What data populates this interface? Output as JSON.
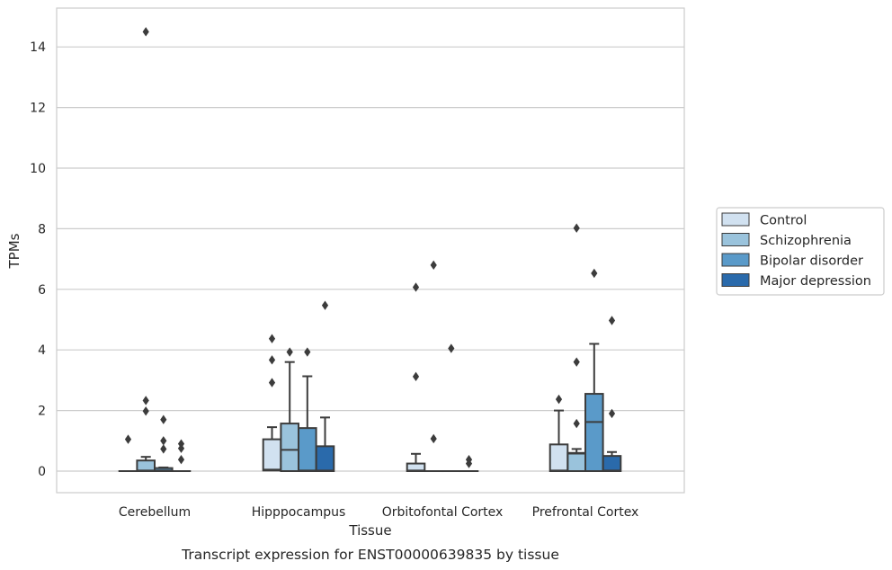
{
  "chart_data": {
    "type": "box",
    "caption": "Transcript expression for ENST00000639835 by tissue",
    "xlabel": "Tissue",
    "ylabel": "TPMs",
    "ylim": [
      -0.7,
      15.2
    ],
    "yticks": [
      0,
      2,
      4,
      6,
      8,
      10,
      12,
      14
    ],
    "grid": "horizontal",
    "legend_position": "right",
    "categories": [
      "Cerebellum",
      "Hipppocampus",
      "Orbitofontal Cortex",
      "Prefrontal Cortex"
    ],
    "series": [
      {
        "name": "Control",
        "color": "#d1e1f0",
        "boxes": [
          {
            "q1": 0,
            "median": 0,
            "q3": 0,
            "whislo": 0,
            "whishi": 0,
            "fliers": [
              1.05
            ]
          },
          {
            "q1": 0.02,
            "median": 0.05,
            "q3": 1.05,
            "whislo": 0,
            "whishi": 1.45,
            "fliers": [
              2.92,
              3.67,
              4.37
            ]
          },
          {
            "q1": 0,
            "median": 0.02,
            "q3": 0.25,
            "whislo": 0,
            "whishi": 0.57,
            "fliers": [
              3.12,
              6.07
            ]
          },
          {
            "q1": 0,
            "median": 0.02,
            "q3": 0.88,
            "whislo": 0,
            "whishi": 2.0,
            "fliers": [
              2.37
            ]
          }
        ]
      },
      {
        "name": "Schizophrenia",
        "color": "#9ac3dc",
        "boxes": [
          {
            "q1": 0,
            "median": 0.02,
            "q3": 0.35,
            "whislo": 0,
            "whishi": 0.47,
            "fliers": [
              1.98,
              2.33,
              14.5
            ]
          },
          {
            "q1": 0,
            "median": 0.7,
            "q3": 1.57,
            "whislo": 0,
            "whishi": 3.6,
            "fliers": [
              3.93
            ]
          },
          {
            "q1": 0,
            "median": 0,
            "q3": 0,
            "whislo": 0,
            "whishi": 0,
            "fliers": [
              1.07,
              6.8
            ]
          },
          {
            "q1": 0,
            "median": 0.58,
            "q3": 0.6,
            "whislo": 0,
            "whishi": 0.73,
            "fliers": [
              1.57,
              3.6,
              8.02
            ]
          }
        ]
      },
      {
        "name": "Bipolar disorder",
        "color": "#5a9ac9",
        "boxes": [
          {
            "q1": 0,
            "median": 0.02,
            "q3": 0.1,
            "whislo": 0,
            "whishi": 0.12,
            "fliers": [
              0.73,
              1.0,
              1.7
            ]
          },
          {
            "q1": 0,
            "median": 0.02,
            "q3": 1.42,
            "whislo": 0,
            "whishi": 3.13,
            "fliers": [
              3.93
            ]
          },
          {
            "q1": 0,
            "median": 0,
            "q3": 0,
            "whislo": 0,
            "whishi": 0,
            "fliers": [
              4.05
            ]
          },
          {
            "q1": 0,
            "median": 1.62,
            "q3": 2.55,
            "whislo": 0,
            "whishi": 4.2,
            "fliers": [
              6.53
            ]
          }
        ]
      },
      {
        "name": "Major depression",
        "color": "#2a6aab",
        "boxes": [
          {
            "q1": 0,
            "median": 0,
            "q3": 0,
            "whislo": 0,
            "whishi": 0,
            "fliers": [
              0.38,
              0.75,
              0.9
            ]
          },
          {
            "q1": 0,
            "median": 0.02,
            "q3": 0.82,
            "whislo": 0,
            "whishi": 1.77,
            "fliers": [
              5.47
            ]
          },
          {
            "q1": 0,
            "median": 0,
            "q3": 0,
            "whislo": 0,
            "whishi": 0,
            "fliers": [
              0.25,
              0.38
            ]
          },
          {
            "q1": 0,
            "median": 0.02,
            "q3": 0.5,
            "whislo": 0,
            "whishi": 0.63,
            "fliers": [
              1.9,
              4.97
            ]
          }
        ]
      }
    ]
  }
}
